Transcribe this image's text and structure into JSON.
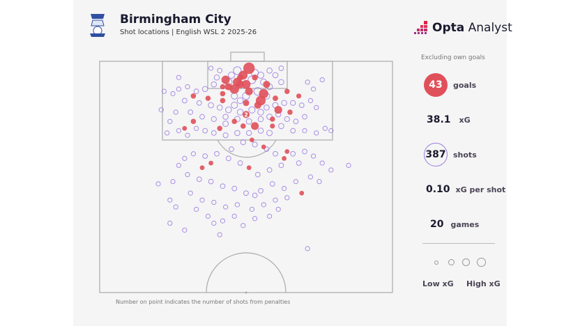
{
  "header": {
    "title": "Birmingham City",
    "subtitle": "Shot locations | English WSL 2 2025-26",
    "brand": {
      "bold": "Opta",
      "light": " Analyst"
    }
  },
  "side": {
    "note": "Excluding own goals",
    "goals": {
      "value": "43",
      "label": "goals"
    },
    "xg": {
      "value": "38.1",
      "label": "xG"
    },
    "shots": {
      "value": "387",
      "label": "shots"
    },
    "xg_per_shot": {
      "value": "0.10",
      "label": "xG per shot"
    },
    "games": {
      "value": "20",
      "label": "games"
    },
    "legend": {
      "low": "Low xG",
      "high": "High xG"
    }
  },
  "footnote": "Number on point indicates the number of shots from penalties",
  "colors": {
    "goal": "#e0505a",
    "shot": "#9b7be0",
    "pitch_line": "#aaaaaa"
  },
  "chart_data": {
    "type": "scatter",
    "description_units": "x: % of pitch width (0-100, left to right); y: % of half-pitch length from goal line",
    "goals": [
      [
        51,
        3,
        0.6
      ],
      [
        49,
        6,
        0.3
      ],
      [
        43,
        8,
        0.25
      ],
      [
        47,
        9,
        0.3
      ],
      [
        50,
        10,
        0.3
      ],
      [
        48,
        10,
        0.2
      ],
      [
        57,
        10,
        0.15
      ],
      [
        46,
        12,
        0.35
      ],
      [
        44,
        11,
        0.15
      ],
      [
        51,
        13,
        0.2
      ],
      [
        56,
        14,
        0.35
      ],
      [
        55,
        17,
        0.4
      ],
      [
        54,
        19,
        0.15
      ],
      [
        61,
        21,
        0.2
      ],
      [
        50,
        23,
        0.15,
        "2"
      ],
      [
        53,
        28,
        0.2
      ],
      [
        49,
        28,
        0.05
      ],
      [
        42,
        14,
        0.05
      ],
      [
        37,
        16,
        0.05
      ],
      [
        32,
        15,
        0.05
      ],
      [
        32,
        26,
        0.05
      ],
      [
        29,
        29,
        0.03
      ],
      [
        41,
        29,
        0.05
      ],
      [
        59,
        28,
        0.04
      ],
      [
        65,
        22,
        0.05
      ],
      [
        68,
        15,
        0.04
      ],
      [
        64,
        13,
        0.05
      ],
      [
        64,
        39,
        0.03
      ],
      [
        56,
        37,
        0.03
      ],
      [
        52,
        34,
        0.03
      ],
      [
        63,
        42,
        0.03
      ],
      [
        51,
        46,
        0.03
      ],
      [
        35,
        46,
        0.03
      ],
      [
        38,
        44,
        0.03
      ],
      [
        69,
        57,
        0.03
      ],
      [
        42,
        17,
        0.05
      ],
      [
        59,
        25,
        0.05
      ],
      [
        50,
        18,
        0.1
      ],
      [
        42,
        11,
        0.05
      ],
      [
        48,
        7,
        0.1
      ],
      [
        53,
        7,
        0.08
      ],
      [
        60,
        16,
        0.06
      ],
      [
        46,
        26,
        0.05
      ]
    ],
    "shots": [
      [
        47,
        4,
        0.2
      ],
      [
        53,
        5,
        0.15
      ],
      [
        55,
        6,
        0.1
      ],
      [
        45,
        6,
        0.1
      ],
      [
        58,
        4,
        0.05
      ],
      [
        60,
        6,
        0.05
      ],
      [
        40,
        7,
        0.05
      ],
      [
        62,
        9,
        0.05
      ],
      [
        44,
        9,
        0.15
      ],
      [
        52,
        8,
        0.2
      ],
      [
        56,
        9,
        0.1
      ],
      [
        58,
        11,
        0.08
      ],
      [
        39,
        10,
        0.05
      ],
      [
        36,
        12,
        0.05
      ],
      [
        33,
        13,
        0.03
      ],
      [
        30,
        11,
        0.02
      ],
      [
        27,
        12,
        0.02
      ],
      [
        25,
        14,
        0.02
      ],
      [
        29,
        17,
        0.03
      ],
      [
        34,
        18,
        0.03
      ],
      [
        38,
        19,
        0.05
      ],
      [
        41,
        20,
        0.05
      ],
      [
        44,
        21,
        0.08
      ],
      [
        46,
        19,
        0.1
      ],
      [
        48,
        22,
        0.08
      ],
      [
        52,
        21,
        0.1
      ],
      [
        55,
        22,
        0.08
      ],
      [
        57,
        20,
        0.05
      ],
      [
        60,
        19,
        0.06
      ],
      [
        63,
        18,
        0.05
      ],
      [
        66,
        18,
        0.04
      ],
      [
        69,
        19,
        0.03
      ],
      [
        72,
        17,
        0.02
      ],
      [
        74,
        20,
        0.02
      ],
      [
        70,
        24,
        0.03
      ],
      [
        67,
        26,
        0.03
      ],
      [
        64,
        25,
        0.04
      ],
      [
        62,
        28,
        0.05
      ],
      [
        58,
        31,
        0.06
      ],
      [
        55,
        30,
        0.05
      ],
      [
        51,
        31,
        0.04
      ],
      [
        47,
        31,
        0.05
      ],
      [
        43,
        32,
        0.04
      ],
      [
        39,
        31,
        0.03
      ],
      [
        36,
        30,
        0.03
      ],
      [
        33,
        29,
        0.02
      ],
      [
        30,
        32,
        0.02
      ],
      [
        27,
        30,
        0.02
      ],
      [
        24,
        26,
        0.02
      ],
      [
        26,
        22,
        0.02
      ],
      [
        31,
        22,
        0.03
      ],
      [
        35,
        24,
        0.03
      ],
      [
        39,
        25,
        0.04
      ],
      [
        43,
        24,
        0.05
      ],
      [
        47,
        25,
        0.06
      ],
      [
        51,
        26,
        0.06
      ],
      [
        55,
        25,
        0.05
      ],
      [
        58,
        24,
        0.06
      ],
      [
        61,
        23,
        0.04
      ],
      [
        66,
        30,
        0.03
      ],
      [
        70,
        30,
        0.02
      ],
      [
        74,
        31,
        0.02
      ],
      [
        77,
        29,
        0.02
      ],
      [
        79,
        30,
        0.02
      ],
      [
        73,
        12,
        0.02
      ],
      [
        71,
        9,
        0.02
      ],
      [
        76,
        8,
        0.02
      ],
      [
        62,
        3,
        0.03
      ],
      [
        41,
        4,
        0.03
      ],
      [
        38,
        3,
        0.02
      ],
      [
        27,
        7,
        0.02
      ],
      [
        22,
        13,
        0.02
      ],
      [
        21,
        21,
        0.02
      ],
      [
        23,
        31,
        0.02
      ],
      [
        54,
        13,
        0.2
      ],
      [
        50,
        15,
        0.15
      ],
      [
        46,
        15,
        0.1
      ],
      [
        48,
        17,
        0.08
      ],
      [
        57,
        15,
        0.1
      ],
      [
        43,
        27,
        0.06
      ],
      [
        49,
        35,
        0.04
      ],
      [
        53,
        36,
        0.04
      ],
      [
        57,
        38,
        0.03
      ],
      [
        60,
        40,
        0.03
      ],
      [
        66,
        40,
        0.03
      ],
      [
        70,
        39,
        0.03
      ],
      [
        73,
        41,
        0.02
      ],
      [
        76,
        44,
        0.02
      ],
      [
        79,
        47,
        0.02
      ],
      [
        85,
        45,
        0.02
      ],
      [
        68,
        44,
        0.03
      ],
      [
        62,
        45,
        0.03
      ],
      [
        58,
        47,
        0.03
      ],
      [
        54,
        49,
        0.03
      ],
      [
        48,
        44,
        0.03
      ],
      [
        44,
        42,
        0.03
      ],
      [
        40,
        40,
        0.03
      ],
      [
        36,
        41,
        0.03
      ],
      [
        32,
        40,
        0.02
      ],
      [
        29,
        42,
        0.02
      ],
      [
        27,
        45,
        0.02
      ],
      [
        30,
        49,
        0.02
      ],
      [
        34,
        51,
        0.03
      ],
      [
        38,
        52,
        0.03
      ],
      [
        42,
        54,
        0.03
      ],
      [
        46,
        55,
        0.03
      ],
      [
        50,
        57,
        0.03
      ],
      [
        55,
        56,
        0.03
      ],
      [
        59,
        53,
        0.03
      ],
      [
        63,
        55,
        0.02
      ],
      [
        67,
        52,
        0.02
      ],
      [
        72,
        50,
        0.02
      ],
      [
        75,
        52,
        0.02
      ],
      [
        64,
        59,
        0.02
      ],
      [
        60,
        60,
        0.02
      ],
      [
        56,
        62,
        0.02
      ],
      [
        52,
        64,
        0.02
      ],
      [
        47,
        62,
        0.02
      ],
      [
        43,
        63,
        0.02
      ],
      [
        39,
        61,
        0.02
      ],
      [
        35,
        60,
        0.02
      ],
      [
        31,
        57,
        0.02
      ],
      [
        25,
        52,
        0.02
      ],
      [
        24,
        60,
        0.02
      ],
      [
        26,
        63,
        0.02
      ],
      [
        33,
        64,
        0.02
      ],
      [
        37,
        67,
        0.02
      ],
      [
        42,
        69,
        0.02
      ],
      [
        49,
        71,
        0.02
      ],
      [
        53,
        68,
        0.02
      ],
      [
        58,
        67,
        0.02
      ],
      [
        61,
        64,
        0.02
      ],
      [
        41,
        75,
        0.02
      ],
      [
        39,
        70,
        0.02
      ],
      [
        24,
        70,
        0.02
      ],
      [
        29,
        73,
        0.02
      ],
      [
        46,
        67,
        0.02
      ],
      [
        53,
        58,
        0.03
      ],
      [
        71,
        81,
        0.02
      ],
      [
        20,
        53,
        0.02
      ],
      [
        45,
        38,
        0.03
      ]
    ]
  }
}
